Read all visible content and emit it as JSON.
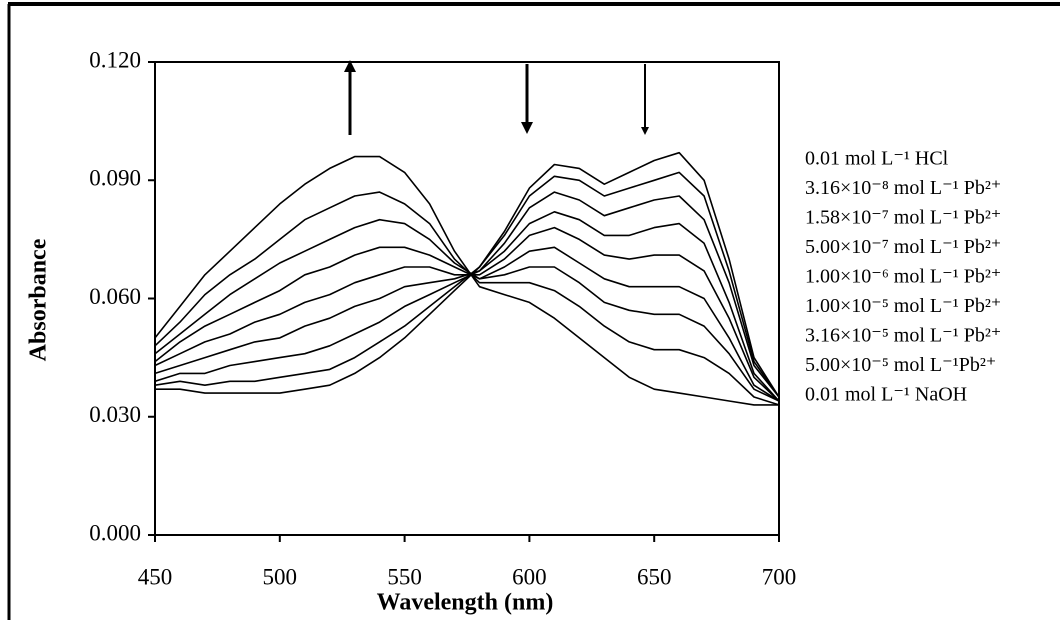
{
  "chart_data": {
    "type": "line",
    "x_label": "Wavelength (nm)",
    "y_label": "Absorbance",
    "x": [
      450,
      460,
      470,
      480,
      490,
      500,
      510,
      520,
      530,
      540,
      550,
      560,
      570,
      580,
      590,
      600,
      610,
      620,
      630,
      640,
      650,
      660,
      670,
      680,
      690,
      700
    ],
    "xlim": [
      450,
      700
    ],
    "xticks": [
      450,
      500,
      550,
      600,
      650,
      700
    ],
    "ylim": [
      0,
      0.12
    ],
    "yticks": [
      {
        "value": 0,
        "label": "0.000"
      },
      {
        "value": 0.03,
        "label": "0.030"
      },
      {
        "value": 0.06,
        "label": "0.060"
      },
      {
        "value": 0.09,
        "label": "0.090"
      },
      {
        "value": 0.12,
        "label": "0.120"
      }
    ],
    "grid": false,
    "legend": "right",
    "series": [
      {
        "name": "0.01 mol L⁻¹ HCl",
        "color": "#000000",
        "values": [
          0.05,
          0.058,
          0.066,
          0.072,
          0.078,
          0.084,
          0.089,
          0.093,
          0.096,
          0.096,
          0.092,
          0.084,
          0.072,
          0.063,
          0.061,
          0.059,
          0.055,
          0.05,
          0.045,
          0.04,
          0.037,
          0.036,
          0.035,
          0.034,
          0.033,
          0.033
        ]
      },
      {
        "name": "3.16×10⁻⁸ mol L⁻¹ Pb²⁺",
        "color": "#000000",
        "values": [
          0.048,
          0.054,
          0.061,
          0.066,
          0.07,
          0.075,
          0.08,
          0.083,
          0.086,
          0.087,
          0.084,
          0.079,
          0.07,
          0.064,
          0.064,
          0.064,
          0.062,
          0.058,
          0.053,
          0.049,
          0.047,
          0.047,
          0.045,
          0.041,
          0.035,
          0.033
        ]
      },
      {
        "name": "1.58×10⁻⁷ mol L⁻¹ Pb²⁺",
        "color": "#000000",
        "values": [
          0.046,
          0.051,
          0.056,
          0.061,
          0.065,
          0.069,
          0.072,
          0.075,
          0.078,
          0.08,
          0.079,
          0.075,
          0.069,
          0.065,
          0.066,
          0.068,
          0.068,
          0.064,
          0.059,
          0.057,
          0.056,
          0.056,
          0.053,
          0.046,
          0.037,
          0.034
        ]
      },
      {
        "name": "5.00×10⁻⁷ mol L⁻¹ Pb²⁺",
        "color": "#000000",
        "values": [
          0.044,
          0.049,
          0.053,
          0.056,
          0.059,
          0.062,
          0.066,
          0.068,
          0.071,
          0.073,
          0.073,
          0.071,
          0.068,
          0.065,
          0.068,
          0.072,
          0.073,
          0.069,
          0.065,
          0.063,
          0.063,
          0.063,
          0.06,
          0.05,
          0.038,
          0.034
        ]
      },
      {
        "name": "1.00×10⁻⁶ mol L⁻¹ Pb²⁺",
        "color": "#000000",
        "values": [
          0.043,
          0.046,
          0.049,
          0.051,
          0.054,
          0.056,
          0.059,
          0.061,
          0.064,
          0.066,
          0.068,
          0.068,
          0.066,
          0.066,
          0.07,
          0.076,
          0.078,
          0.075,
          0.071,
          0.07,
          0.071,
          0.071,
          0.067,
          0.055,
          0.04,
          0.034
        ]
      },
      {
        "name": "1.00×10⁻⁵ mol L⁻¹ Pb²⁺",
        "color": "#000000",
        "values": [
          0.041,
          0.043,
          0.045,
          0.047,
          0.049,
          0.05,
          0.053,
          0.055,
          0.058,
          0.06,
          0.063,
          0.064,
          0.065,
          0.067,
          0.072,
          0.079,
          0.082,
          0.08,
          0.076,
          0.076,
          0.078,
          0.079,
          0.074,
          0.059,
          0.041,
          0.034
        ]
      },
      {
        "name": "3.16×10⁻⁵ mol L⁻¹ Pb²⁺",
        "color": "#000000",
        "values": [
          0.039,
          0.041,
          0.041,
          0.043,
          0.044,
          0.045,
          0.046,
          0.048,
          0.051,
          0.054,
          0.058,
          0.061,
          0.064,
          0.067,
          0.074,
          0.083,
          0.087,
          0.085,
          0.081,
          0.083,
          0.085,
          0.086,
          0.08,
          0.064,
          0.043,
          0.035
        ]
      },
      {
        "name": "5.00×10⁻⁵ mol L⁻¹Pb²⁺",
        "color": "#000000",
        "values": [
          0.038,
          0.039,
          0.038,
          0.039,
          0.039,
          0.04,
          0.041,
          0.042,
          0.045,
          0.049,
          0.053,
          0.058,
          0.063,
          0.068,
          0.076,
          0.086,
          0.091,
          0.09,
          0.086,
          0.088,
          0.09,
          0.092,
          0.086,
          0.067,
          0.044,
          0.035
        ]
      },
      {
        "name": "0.01 mol L⁻¹ NaOH",
        "color": "#000000",
        "values": [
          0.037,
          0.037,
          0.036,
          0.036,
          0.036,
          0.036,
          0.037,
          0.038,
          0.041,
          0.045,
          0.05,
          0.056,
          0.062,
          0.068,
          0.077,
          0.088,
          0.094,
          0.093,
          0.089,
          0.092,
          0.095,
          0.097,
          0.09,
          0.07,
          0.045,
          0.035
        ]
      }
    ]
  }
}
